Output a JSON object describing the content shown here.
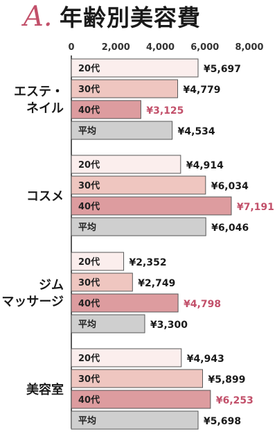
{
  "title": {
    "mark": "A.",
    "text": "年齢別美容費"
  },
  "chart_data": {
    "type": "bar",
    "orientation": "horizontal",
    "xlim": [
      0,
      8000
    ],
    "ticks": [
      "0",
      "2,000",
      "4,000",
      "6,000",
      "8,000"
    ],
    "tick_values": [
      0,
      2000,
      4000,
      6000,
      8000
    ],
    "grid": false,
    "series_labels": [
      "20代",
      "30代",
      "40代",
      "平均"
    ],
    "series_colors": [
      "#fbeeed",
      "#efc6c0",
      "#dd9c9f",
      "#cfcfcf"
    ],
    "highlight_color": "#c2506a",
    "categories": [
      {
        "name": [
          "エステ・",
          "ネイル"
        ],
        "values": [
          5697,
          4779,
          3125,
          4534
        ],
        "labels": [
          "¥5,697",
          "¥4,779",
          "¥3,125",
          "¥4,534"
        ]
      },
      {
        "name": [
          "コスメ"
        ],
        "values": [
          4914,
          6034,
          7191,
          6046
        ],
        "labels": [
          "¥4,914",
          "¥6,034",
          "¥7,191",
          "¥6,046"
        ]
      },
      {
        "name": [
          "ジム",
          "マッサージ"
        ],
        "values": [
          2352,
          2749,
          4798,
          3300
        ],
        "labels": [
          "¥2,352",
          "¥2,749",
          "¥4,798",
          "¥3,300"
        ]
      },
      {
        "name": [
          "美容室"
        ],
        "values": [
          4943,
          5899,
          6253,
          5698
        ],
        "labels": [
          "¥4,943",
          "¥5,899",
          "¥6,253",
          "¥5,698"
        ]
      }
    ]
  }
}
